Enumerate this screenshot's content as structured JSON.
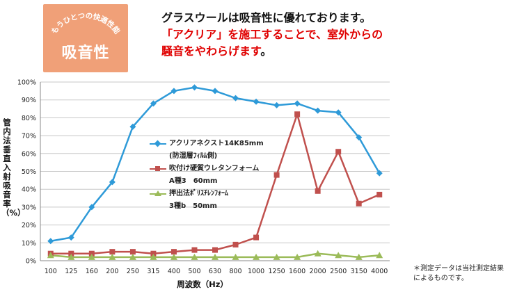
{
  "badge": {
    "arc_text": "もうひとつの快適性能",
    "main_text": "吸音性"
  },
  "headline": {
    "line1": "グラスウールは吸音性に優れております。",
    "line2": "「アクリア」を施工することで、室外からの",
    "line3_part1": "騒音をやわらげます",
    "line3_part2": "。"
  },
  "note": "＊測定データは当社測定結果によるものです。",
  "chart_data": {
    "type": "line",
    "xlabel": "周波数（Hz）",
    "ylabel": "管内法垂直入射吸音率（%）",
    "categories": [
      "100",
      "125",
      "160",
      "200",
      "250",
      "315",
      "400",
      "500",
      "630",
      "800",
      "1000",
      "1250",
      "1600",
      "2000",
      "2500",
      "3150",
      "4000"
    ],
    "ylim": [
      0,
      100
    ],
    "yticks": [
      "0%",
      "10%",
      "20%",
      "30%",
      "40%",
      "50%",
      "60%",
      "70%",
      "80%",
      "90%",
      "100%"
    ],
    "grid": true,
    "legend_position": "inside-left",
    "series": [
      {
        "name": "アクリアネクスト14K85mm",
        "name_line2": "(防湿層ﾌｨﾙﾑ側)",
        "color": "#2e9ad8",
        "marker": "diamond",
        "values": [
          11,
          13,
          30,
          44,
          75,
          88,
          95,
          97,
          95,
          91,
          89,
          87,
          88,
          84,
          83,
          69,
          49
        ]
      },
      {
        "name": "吹付け硬質ウレタンフォーム",
        "name_line2": "A種3　60mm",
        "color": "#c0504d",
        "marker": "square",
        "values": [
          4,
          4,
          4,
          5,
          5,
          4,
          5,
          6,
          6,
          9,
          13,
          48,
          82,
          39,
          61,
          32,
          37
        ]
      },
      {
        "name": "押出法ﾎﾟﾘｽﾁﾚﾝﾌｫｰﾑ",
        "name_line2": "3種b　50mm",
        "color": "#9bbb59",
        "marker": "triangle",
        "values": [
          3,
          2,
          2,
          2,
          2,
          2,
          2,
          2,
          2,
          2,
          2,
          2,
          2,
          4,
          3,
          2,
          3
        ]
      }
    ]
  }
}
